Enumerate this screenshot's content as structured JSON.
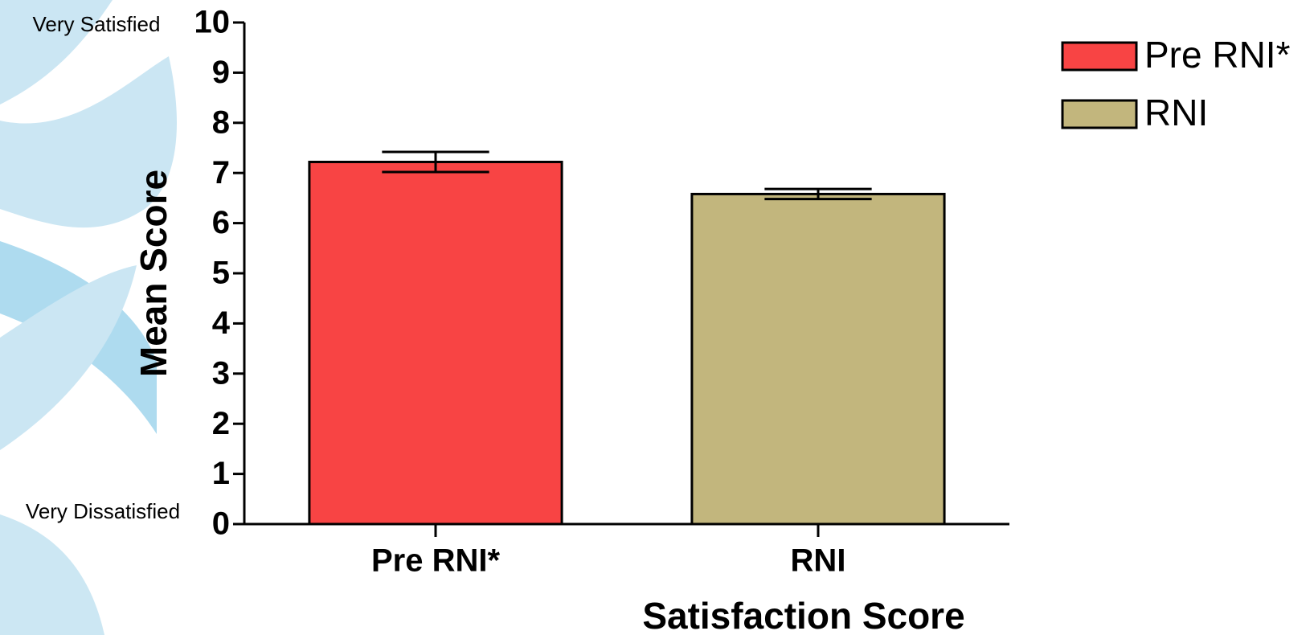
{
  "chart_data": {
    "type": "bar",
    "xlabel": "Satisfaction  Score",
    "ylabel": "Mean Score",
    "annotations": [
      "Very Satisfied",
      "Very Dissatisfied"
    ],
    "categories": [
      "Pre RNI*",
      "RNI"
    ],
    "values": [
      7.22,
      6.58
    ],
    "errors": [
      0.2,
      0.1
    ],
    "colors": [
      "#f84444",
      "#c2b67d"
    ],
    "ylim": [
      0,
      10
    ],
    "yticks": [
      0,
      1,
      2,
      3,
      4,
      5,
      6,
      7,
      8,
      9,
      10
    ],
    "legend": "top-right"
  }
}
